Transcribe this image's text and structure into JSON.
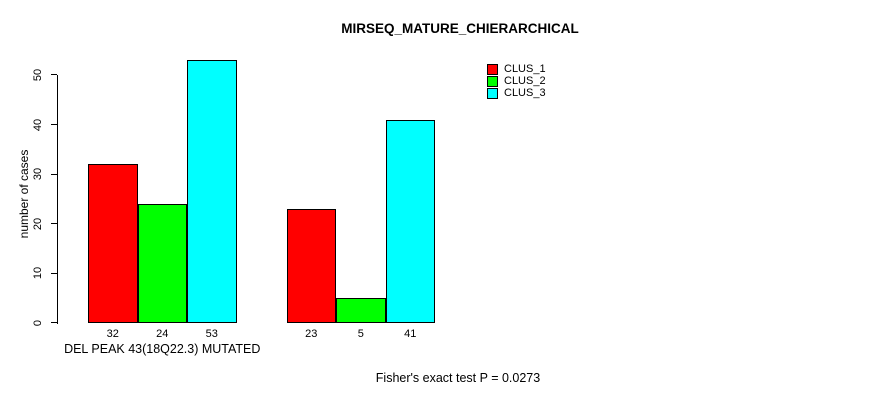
{
  "title": "MIRSEQ_MATURE_CHIERARCHICAL",
  "chart_data": {
    "type": "bar",
    "title": "MIRSEQ_MATURE_CHIERARCHICAL",
    "ylabel": "number of cases",
    "xlabel": "",
    "yticks": [
      0,
      10,
      20,
      30,
      40,
      50
    ],
    "ylim": [
      0,
      53
    ],
    "grid": false,
    "groups": [
      {
        "label": "DEL PEAK 43(18Q22.3) MUTATED",
        "values": [
          32,
          24,
          53
        ]
      },
      {
        "label": "",
        "values": [
          23,
          5,
          41
        ]
      }
    ],
    "series": [
      {
        "name": "CLUS_1",
        "color": "#ff0000",
        "values": [
          32,
          23
        ]
      },
      {
        "name": "CLUS_2",
        "color": "#00ff00",
        "values": [
          24,
          5
        ]
      },
      {
        "name": "CLUS_3",
        "color": "#00ffff",
        "values": [
          53,
          41
        ]
      }
    ],
    "series_colors": [
      "#ff0000",
      "#00ff00",
      "#00ffff"
    ],
    "legend": {
      "position": "top-right",
      "entries": [
        "CLUS_1",
        "CLUS_2",
        "CLUS_3"
      ]
    },
    "annotation": "Fisher's exact test P = 0.0273"
  },
  "colors": {
    "background": "#ffffff",
    "axis": "#000000",
    "text": "#000000",
    "bar_border": "#000000",
    "clus_1": "#ff0000",
    "clus_2": "#00ff00",
    "clus_3": "#00ffff"
  }
}
